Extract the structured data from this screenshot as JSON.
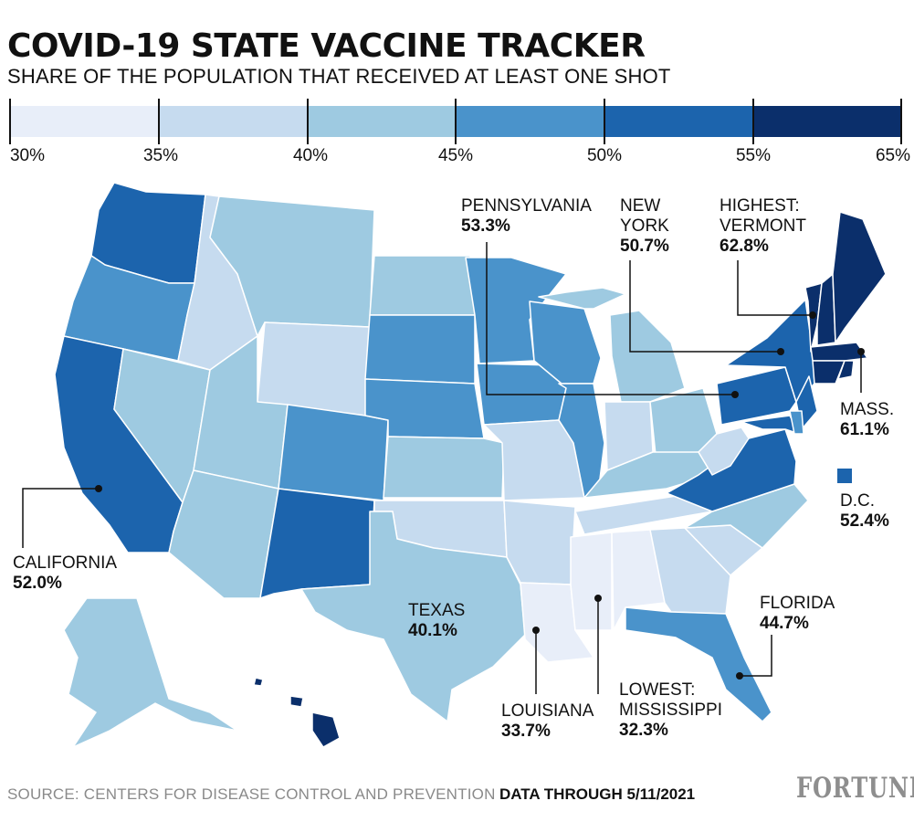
{
  "title": "COVID-19 STATE VACCINE TRACKER",
  "subtitle": "SHARE OF THE POPULATION THAT RECEIVED AT LEAST ONE SHOT",
  "legend": {
    "ticks": [
      "30%",
      "35%",
      "40%",
      "45%",
      "50%",
      "55%",
      "65%"
    ],
    "colors": [
      "#e8eef9",
      "#c6dbef",
      "#9ecae1",
      "#4a93cb",
      "#1c64ad",
      "#0b2f6b"
    ]
  },
  "callouts": {
    "pennsylvania": {
      "name": "PENNSYLVANIA",
      "value": "53.3%"
    },
    "new_york": {
      "name_line1": "NEW",
      "name_line2": "YORK",
      "value": "50.7%"
    },
    "vermont": {
      "name_line1": "HIGHEST:",
      "name_line2": "VERMONT",
      "value": "62.8%"
    },
    "massachusetts": {
      "name": "MASS.",
      "value": "61.1%"
    },
    "dc": {
      "name": "D.C.",
      "value": "52.4%"
    },
    "california": {
      "name": "CALIFORNIA",
      "value": "52.0%"
    },
    "texas": {
      "name": "TEXAS",
      "value": "40.1%"
    },
    "florida": {
      "name": "FLORIDA",
      "value": "44.7%"
    },
    "louisiana": {
      "name": "LOUISIANA",
      "value": "33.7%"
    },
    "mississippi": {
      "name_line1": "LOWEST:",
      "name_line2": "MISSISSIPPI",
      "value": "32.3%"
    }
  },
  "footer": {
    "source": "SOURCE: CENTERS FOR DISEASE CONTROL AND PREVENTION",
    "date": "DATA THROUGH 5/11/2021",
    "brand": "FORTUNE"
  }
}
